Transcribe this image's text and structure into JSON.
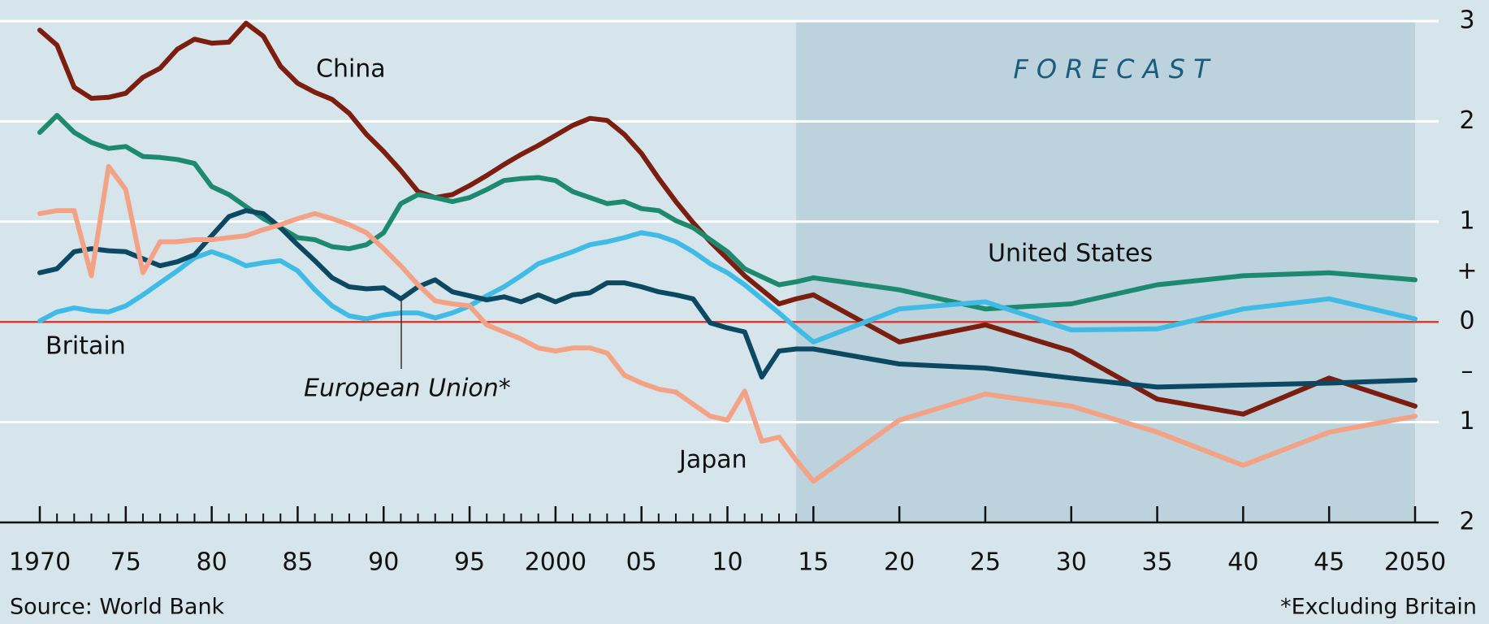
{
  "chart_data": {
    "type": "line",
    "x": [
      1970,
      1971,
      1972,
      1973,
      1974,
      1975,
      1976,
      1977,
      1978,
      1979,
      1980,
      1981,
      1982,
      1983,
      1984,
      1985,
      1986,
      1987,
      1988,
      1989,
      1990,
      1991,
      1992,
      1993,
      1994,
      1995,
      1996,
      1997,
      1998,
      1999,
      2000,
      2001,
      2002,
      2003,
      2004,
      2005,
      2006,
      2007,
      2008,
      2009,
      2010,
      2011,
      2012,
      2013,
      2014,
      2015,
      2020,
      2025,
      2030,
      2035,
      2040,
      2045,
      2050
    ],
    "series": [
      {
        "name": "China",
        "color": "#7b1e10",
        "values": [
          2.91,
          2.76,
          2.34,
          2.23,
          2.24,
          2.28,
          2.44,
          2.53,
          2.72,
          2.82,
          2.78,
          2.79,
          2.98,
          2.85,
          2.55,
          2.38,
          2.29,
          2.22,
          2.08,
          1.87,
          1.7,
          1.51,
          1.3,
          1.24,
          1.27,
          1.36,
          1.46,
          1.57,
          1.67,
          1.76,
          1.86,
          1.96,
          2.03,
          2.01,
          1.87,
          1.68,
          1.43,
          1.2,
          0.99,
          0.8,
          0.63,
          0.46,
          0.32,
          0.18,
          0.23,
          0.27,
          -0.2,
          -0.03,
          -0.29,
          -0.77,
          -0.92,
          -0.56,
          -0.84
        ]
      },
      {
        "name": "United States",
        "color": "#1d8a6f",
        "values": [
          1.89,
          2.06,
          1.89,
          1.79,
          1.73,
          1.75,
          1.65,
          1.64,
          1.62,
          1.58,
          1.35,
          1.27,
          1.15,
          1.03,
          0.94,
          0.84,
          0.82,
          0.75,
          0.73,
          0.77,
          0.89,
          1.18,
          1.27,
          1.24,
          1.2,
          1.24,
          1.32,
          1.41,
          1.43,
          1.44,
          1.41,
          1.3,
          1.24,
          1.18,
          1.2,
          1.13,
          1.11,
          1.01,
          0.94,
          0.82,
          0.7,
          0.53,
          0.45,
          0.37,
          0.4,
          0.44,
          0.32,
          0.13,
          0.18,
          0.37,
          0.46,
          0.49,
          0.42
        ]
      },
      {
        "name": "Britain",
        "color": "#3fbbe6",
        "values": [
          0.01,
          0.1,
          0.14,
          0.11,
          0.1,
          0.16,
          0.27,
          0.39,
          0.51,
          0.64,
          0.7,
          0.64,
          0.56,
          0.59,
          0.61,
          0.51,
          0.32,
          0.16,
          0.06,
          0.03,
          0.07,
          0.09,
          0.09,
          0.04,
          0.09,
          0.16,
          0.26,
          0.35,
          0.46,
          0.58,
          0.64,
          0.7,
          0.77,
          0.8,
          0.84,
          0.89,
          0.86,
          0.8,
          0.7,
          0.58,
          0.49,
          0.37,
          0.23,
          0.09,
          -0.06,
          -0.2,
          0.13,
          0.2,
          -0.08,
          -0.07,
          0.13,
          0.23,
          0.03
        ]
      },
      {
        "name": "European Union*",
        "color": "#0c4862",
        "values": [
          0.49,
          0.53,
          0.7,
          0.73,
          0.71,
          0.7,
          0.63,
          0.56,
          0.6,
          0.67,
          0.86,
          1.05,
          1.11,
          1.08,
          0.94,
          0.77,
          0.61,
          0.44,
          0.35,
          0.33,
          0.34,
          0.23,
          0.35,
          0.42,
          0.3,
          0.26,
          0.22,
          0.25,
          0.2,
          0.27,
          0.2,
          0.27,
          0.29,
          0.39,
          0.39,
          0.35,
          0.3,
          0.27,
          0.23,
          -0.01,
          -0.06,
          -0.1,
          -0.55,
          -0.29,
          -0.27,
          -0.27,
          -0.42,
          -0.46,
          -0.56,
          -0.65,
          -0.63,
          -0.61,
          -0.58
        ]
      },
      {
        "name": "Japan",
        "color": "#f4a285",
        "values": [
          1.08,
          1.11,
          1.11,
          0.46,
          1.55,
          1.32,
          0.49,
          0.8,
          0.8,
          0.82,
          0.82,
          0.84,
          0.86,
          0.92,
          0.97,
          1.03,
          1.08,
          1.03,
          0.97,
          0.89,
          0.73,
          0.56,
          0.37,
          0.21,
          0.18,
          0.16,
          -0.03,
          -0.1,
          -0.17,
          -0.26,
          -0.29,
          -0.26,
          -0.26,
          -0.31,
          -0.53,
          -0.61,
          -0.67,
          -0.7,
          -0.82,
          -0.94,
          -0.98,
          -0.69,
          -1.19,
          -1.15,
          -1.38,
          -1.59,
          -0.98,
          -0.72,
          -0.84,
          -1.1,
          -1.43,
          -1.1,
          -0.94
        ]
      }
    ],
    "xlim": [
      1970,
      2050
    ],
    "ylim": [
      -2,
      3
    ],
    "xticks": [
      1970,
      {
        "value": 1975,
        "label": "75"
      },
      {
        "value": 1980,
        "label": "80"
      },
      {
        "value": 1985,
        "label": "85"
      },
      {
        "value": 1990,
        "label": "90"
      },
      {
        "value": 1995,
        "label": "95"
      },
      2000,
      {
        "value": 2005,
        "label": "05"
      },
      {
        "value": 2010,
        "label": "10"
      },
      {
        "value": 2015,
        "label": "15"
      },
      {
        "value": 2020,
        "label": "20"
      },
      {
        "value": 2025,
        "label": "25"
      },
      {
        "value": 2030,
        "label": "30"
      },
      {
        "value": 2035,
        "label": "35"
      },
      {
        "value": 2040,
        "label": "40"
      },
      {
        "value": 2045,
        "label": "45"
      },
      2050
    ],
    "yticks": [
      3,
      2,
      1,
      {
        "value": 0.5,
        "label": "+"
      },
      0,
      {
        "value": -0.5,
        "label": "–"
      },
      {
        "value": -1,
        "label": "1"
      },
      {
        "value": -2,
        "label": "2"
      }
    ],
    "grid": true,
    "forecast_start": 2014,
    "forecast_label": "F O R E C A S T",
    "source": "Source: World Bank",
    "footnote": "*Excluding Britain"
  }
}
